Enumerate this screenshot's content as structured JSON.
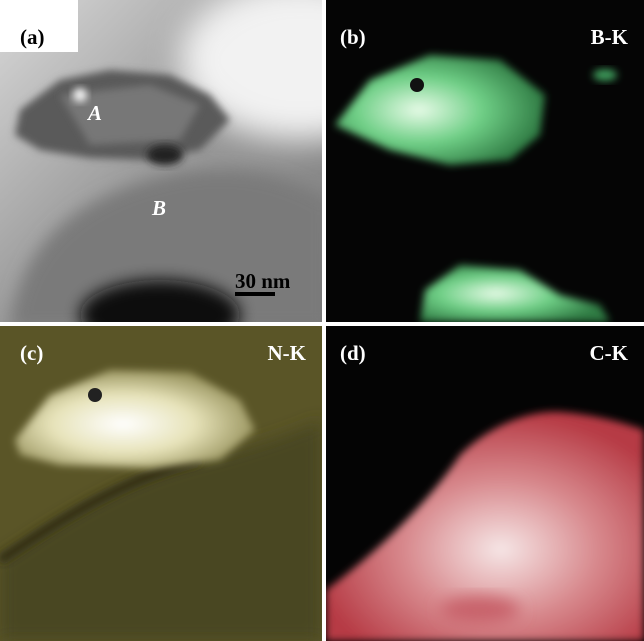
{
  "panels": [
    {
      "label": "(a)",
      "annotations": [
        "A",
        "B"
      ],
      "scale_bar": "30 nm"
    },
    {
      "label": "(b)",
      "edge": "B-K"
    },
    {
      "label": "(c)",
      "edge": "N-K"
    },
    {
      "label": "(d)",
      "edge": "C-K"
    }
  ]
}
